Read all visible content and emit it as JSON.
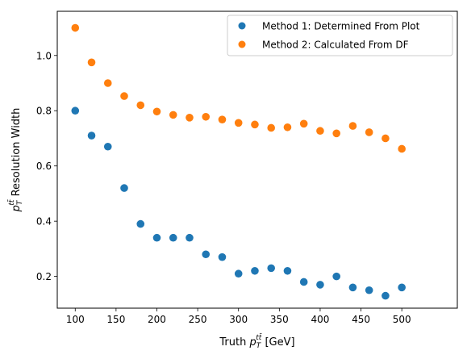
{
  "chart_data": {
    "type": "scatter",
    "xlabel_prefix": "Truth ",
    "xlabel_sym": "p",
    "xlabel_sub": "T",
    "xlabel_sup": "tt̄",
    "xlabel_suffix": " [GeV]",
    "ylabel_sym": "p",
    "ylabel_sub": "T",
    "ylabel_sup": "tt̄",
    "ylabel_suffix": " Resolution Width",
    "xlim": [
      78,
      568
    ],
    "ylim": [
      0.085,
      1.16
    ],
    "xticks": [
      100,
      150,
      200,
      250,
      300,
      350,
      400,
      450,
      500
    ],
    "yticks": [
      0.2,
      0.4,
      0.6,
      0.8,
      1.0
    ],
    "ytick_labels": [
      "0.2",
      "0.4",
      "0.6",
      "0.8",
      "1.0"
    ],
    "legend_position": "top-right",
    "x": [
      100,
      120,
      140,
      160,
      180,
      200,
      220,
      240,
      260,
      280,
      300,
      320,
      340,
      360,
      380,
      400,
      420,
      440,
      460,
      480,
      500
    ],
    "series": [
      {
        "name": "Method 1: Determined From Plot",
        "color": "#1f77b4",
        "values": [
          0.8,
          0.71,
          0.67,
          0.52,
          0.39,
          0.34,
          0.34,
          0.34,
          0.28,
          0.27,
          0.21,
          0.22,
          0.23,
          0.22,
          0.18,
          0.17,
          0.2,
          0.16,
          0.15,
          0.13,
          0.16
        ]
      },
      {
        "name": "Method 2: Calculated From DF",
        "color": "#ff7f0e",
        "values": [
          1.1,
          0.975,
          0.9,
          0.853,
          0.82,
          0.797,
          0.785,
          0.775,
          0.778,
          0.768,
          0.756,
          0.75,
          0.738,
          0.74,
          0.753,
          0.727,
          0.718,
          0.745,
          0.722,
          0.7,
          0.662
        ]
      }
    ]
  }
}
